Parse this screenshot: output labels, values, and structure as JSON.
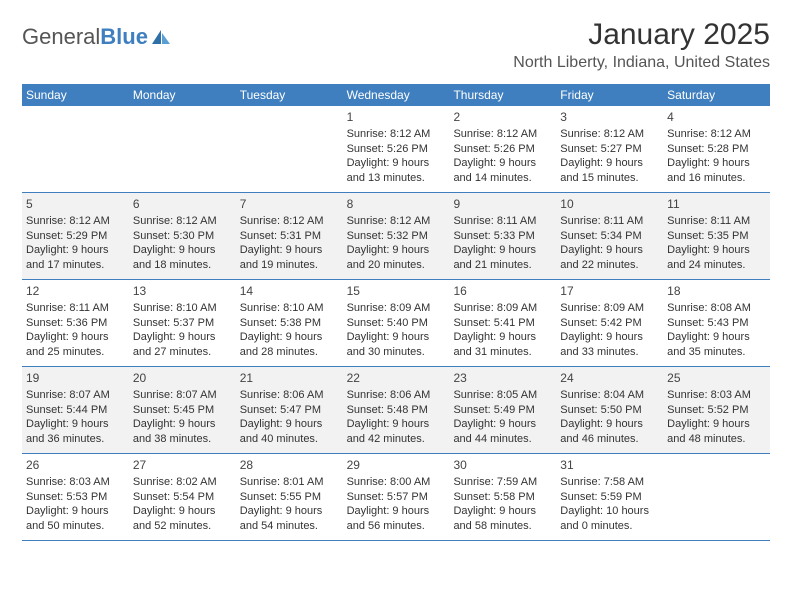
{
  "logo": {
    "text_general": "General",
    "text_blue": "Blue"
  },
  "title": "January 2025",
  "location": "North Liberty, Indiana, United States",
  "weekdays": [
    "Sunday",
    "Monday",
    "Tuesday",
    "Wednesday",
    "Thursday",
    "Friday",
    "Saturday"
  ],
  "colors": {
    "header_bg": "#3f7fbf",
    "shaded_bg": "#f2f2f2",
    "text": "#333333",
    "logo_blue": "#3f7fbf"
  },
  "weeks": [
    {
      "shaded": false,
      "days": [
        {
          "num": "",
          "sunrise": "",
          "sunset": "",
          "daylight": ""
        },
        {
          "num": "",
          "sunrise": "",
          "sunset": "",
          "daylight": ""
        },
        {
          "num": "",
          "sunrise": "",
          "sunset": "",
          "daylight": ""
        },
        {
          "num": "1",
          "sunrise": "Sunrise: 8:12 AM",
          "sunset": "Sunset: 5:26 PM",
          "daylight": "Daylight: 9 hours and 13 minutes."
        },
        {
          "num": "2",
          "sunrise": "Sunrise: 8:12 AM",
          "sunset": "Sunset: 5:26 PM",
          "daylight": "Daylight: 9 hours and 14 minutes."
        },
        {
          "num": "3",
          "sunrise": "Sunrise: 8:12 AM",
          "sunset": "Sunset: 5:27 PM",
          "daylight": "Daylight: 9 hours and 15 minutes."
        },
        {
          "num": "4",
          "sunrise": "Sunrise: 8:12 AM",
          "sunset": "Sunset: 5:28 PM",
          "daylight": "Daylight: 9 hours and 16 minutes."
        }
      ]
    },
    {
      "shaded": true,
      "days": [
        {
          "num": "5",
          "sunrise": "Sunrise: 8:12 AM",
          "sunset": "Sunset: 5:29 PM",
          "daylight": "Daylight: 9 hours and 17 minutes."
        },
        {
          "num": "6",
          "sunrise": "Sunrise: 8:12 AM",
          "sunset": "Sunset: 5:30 PM",
          "daylight": "Daylight: 9 hours and 18 minutes."
        },
        {
          "num": "7",
          "sunrise": "Sunrise: 8:12 AM",
          "sunset": "Sunset: 5:31 PM",
          "daylight": "Daylight: 9 hours and 19 minutes."
        },
        {
          "num": "8",
          "sunrise": "Sunrise: 8:12 AM",
          "sunset": "Sunset: 5:32 PM",
          "daylight": "Daylight: 9 hours and 20 minutes."
        },
        {
          "num": "9",
          "sunrise": "Sunrise: 8:11 AM",
          "sunset": "Sunset: 5:33 PM",
          "daylight": "Daylight: 9 hours and 21 minutes."
        },
        {
          "num": "10",
          "sunrise": "Sunrise: 8:11 AM",
          "sunset": "Sunset: 5:34 PM",
          "daylight": "Daylight: 9 hours and 22 minutes."
        },
        {
          "num": "11",
          "sunrise": "Sunrise: 8:11 AM",
          "sunset": "Sunset: 5:35 PM",
          "daylight": "Daylight: 9 hours and 24 minutes."
        }
      ]
    },
    {
      "shaded": false,
      "days": [
        {
          "num": "12",
          "sunrise": "Sunrise: 8:11 AM",
          "sunset": "Sunset: 5:36 PM",
          "daylight": "Daylight: 9 hours and 25 minutes."
        },
        {
          "num": "13",
          "sunrise": "Sunrise: 8:10 AM",
          "sunset": "Sunset: 5:37 PM",
          "daylight": "Daylight: 9 hours and 27 minutes."
        },
        {
          "num": "14",
          "sunrise": "Sunrise: 8:10 AM",
          "sunset": "Sunset: 5:38 PM",
          "daylight": "Daylight: 9 hours and 28 minutes."
        },
        {
          "num": "15",
          "sunrise": "Sunrise: 8:09 AM",
          "sunset": "Sunset: 5:40 PM",
          "daylight": "Daylight: 9 hours and 30 minutes."
        },
        {
          "num": "16",
          "sunrise": "Sunrise: 8:09 AM",
          "sunset": "Sunset: 5:41 PM",
          "daylight": "Daylight: 9 hours and 31 minutes."
        },
        {
          "num": "17",
          "sunrise": "Sunrise: 8:09 AM",
          "sunset": "Sunset: 5:42 PM",
          "daylight": "Daylight: 9 hours and 33 minutes."
        },
        {
          "num": "18",
          "sunrise": "Sunrise: 8:08 AM",
          "sunset": "Sunset: 5:43 PM",
          "daylight": "Daylight: 9 hours and 35 minutes."
        }
      ]
    },
    {
      "shaded": true,
      "days": [
        {
          "num": "19",
          "sunrise": "Sunrise: 8:07 AM",
          "sunset": "Sunset: 5:44 PM",
          "daylight": "Daylight: 9 hours and 36 minutes."
        },
        {
          "num": "20",
          "sunrise": "Sunrise: 8:07 AM",
          "sunset": "Sunset: 5:45 PM",
          "daylight": "Daylight: 9 hours and 38 minutes."
        },
        {
          "num": "21",
          "sunrise": "Sunrise: 8:06 AM",
          "sunset": "Sunset: 5:47 PM",
          "daylight": "Daylight: 9 hours and 40 minutes."
        },
        {
          "num": "22",
          "sunrise": "Sunrise: 8:06 AM",
          "sunset": "Sunset: 5:48 PM",
          "daylight": "Daylight: 9 hours and 42 minutes."
        },
        {
          "num": "23",
          "sunrise": "Sunrise: 8:05 AM",
          "sunset": "Sunset: 5:49 PM",
          "daylight": "Daylight: 9 hours and 44 minutes."
        },
        {
          "num": "24",
          "sunrise": "Sunrise: 8:04 AM",
          "sunset": "Sunset: 5:50 PM",
          "daylight": "Daylight: 9 hours and 46 minutes."
        },
        {
          "num": "25",
          "sunrise": "Sunrise: 8:03 AM",
          "sunset": "Sunset: 5:52 PM",
          "daylight": "Daylight: 9 hours and 48 minutes."
        }
      ]
    },
    {
      "shaded": false,
      "days": [
        {
          "num": "26",
          "sunrise": "Sunrise: 8:03 AM",
          "sunset": "Sunset: 5:53 PM",
          "daylight": "Daylight: 9 hours and 50 minutes."
        },
        {
          "num": "27",
          "sunrise": "Sunrise: 8:02 AM",
          "sunset": "Sunset: 5:54 PM",
          "daylight": "Daylight: 9 hours and 52 minutes."
        },
        {
          "num": "28",
          "sunrise": "Sunrise: 8:01 AM",
          "sunset": "Sunset: 5:55 PM",
          "daylight": "Daylight: 9 hours and 54 minutes."
        },
        {
          "num": "29",
          "sunrise": "Sunrise: 8:00 AM",
          "sunset": "Sunset: 5:57 PM",
          "daylight": "Daylight: 9 hours and 56 minutes."
        },
        {
          "num": "30",
          "sunrise": "Sunrise: 7:59 AM",
          "sunset": "Sunset: 5:58 PM",
          "daylight": "Daylight: 9 hours and 58 minutes."
        },
        {
          "num": "31",
          "sunrise": "Sunrise: 7:58 AM",
          "sunset": "Sunset: 5:59 PM",
          "daylight": "Daylight: 10 hours and 0 minutes."
        },
        {
          "num": "",
          "sunrise": "",
          "sunset": "",
          "daylight": ""
        }
      ]
    }
  ]
}
